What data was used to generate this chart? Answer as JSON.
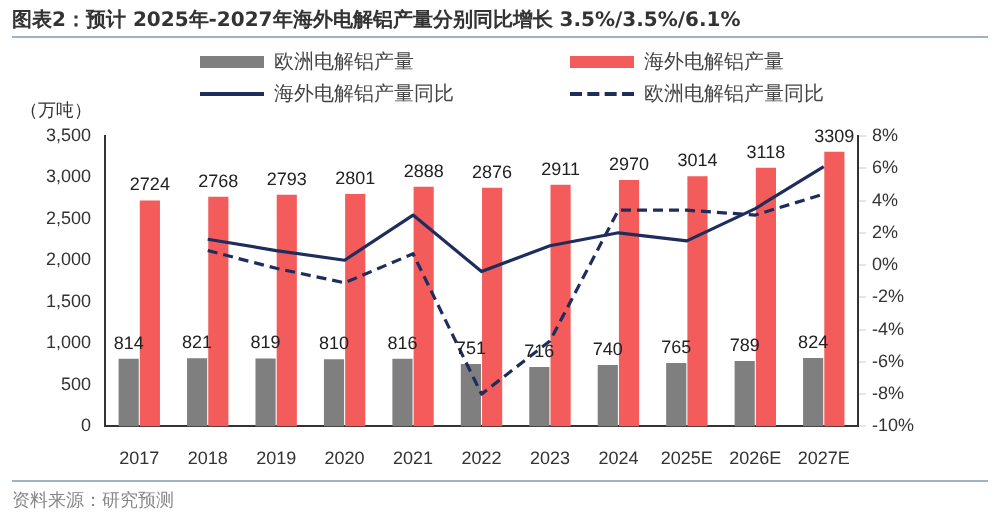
{
  "chart_data": {
    "type": "bar",
    "title": "图表2：预计 2025年-2027年海外电解铝产量分别同比增长 3.5%/3.5%/6.1%",
    "ylabel": "（万吨）",
    "annotations": [
      "资料来源：研究预测"
    ],
    "categories": [
      "2017",
      "2018",
      "2019",
      "2020",
      "2021",
      "2022",
      "2023",
      "2024",
      "2025E",
      "2026E",
      "2027E"
    ],
    "series": [
      {
        "name": "欧洲电解铝产量",
        "color": "#7f7f7f",
        "values": [
          814,
          821,
          819,
          810,
          816,
          751,
          716,
          740,
          765,
          789,
          824
        ],
        "value_labels": [
          "814",
          "821",
          "819",
          "810",
          "816",
          "751",
          "716",
          "740",
          "765",
          "789",
          "824"
        ]
      },
      {
        "name": "海外电解铝产量",
        "color": "#f45b5b",
        "values": [
          2724,
          2768,
          2793,
          2801,
          2888,
          2876,
          2911,
          2970,
          3014,
          3118,
          3309
        ],
        "value_labels": [
          "2724",
          "2768",
          "2793",
          "2801",
          "2888",
          "2876",
          "2911",
          "2970",
          "3014",
          "3118",
          "3309"
        ]
      },
      {
        "name": "海外电解铝产量同比",
        "type": "line",
        "axis": "y2",
        "color": "#1f2d5c",
        "line_style": "solid",
        "values": [
          null,
          1.6,
          0.9,
          0.3,
          3.1,
          -0.4,
          1.2,
          2.0,
          1.5,
          3.5,
          6.1
        ]
      },
      {
        "name": "欧洲电解铝产量同比",
        "type": "line",
        "axis": "y2",
        "color": "#1f2d5c",
        "line_style": "dashed",
        "values": [
          null,
          0.9,
          -0.2,
          -1.1,
          0.7,
          -8.0,
          -4.7,
          3.4,
          3.4,
          3.1,
          4.4
        ]
      }
    ],
    "ylim": [
      0,
      3500
    ],
    "yticks": [
      0,
      {
        "value": 500,
        "label": "500"
      },
      {
        "value": 1000,
        "label": "1,000"
      },
      {
        "value": 1500,
        "label": "1,500"
      },
      {
        "value": 2000,
        "label": "2,000"
      },
      {
        "value": 2500,
        "label": "2,500"
      },
      {
        "value": 3000,
        "label": "3,000"
      },
      {
        "value": 3500,
        "label": "3,500"
      }
    ],
    "y2lim": [
      -10,
      8
    ],
    "y2ticks": [
      {
        "value": -10,
        "label": "-10%"
      },
      {
        "value": -8,
        "label": "-8%"
      },
      {
        "value": -6,
        "label": "-6%"
      },
      {
        "value": -4,
        "label": "-4%"
      },
      {
        "value": -2,
        "label": "-2%"
      },
      {
        "value": 0,
        "label": "0%"
      },
      {
        "value": 2,
        "label": "2%"
      },
      {
        "value": 4,
        "label": "4%"
      },
      {
        "value": 6,
        "label": "6%"
      },
      {
        "value": 8,
        "label": "8%"
      }
    ],
    "grid": false,
    "legend": "top",
    "marker": "none"
  }
}
